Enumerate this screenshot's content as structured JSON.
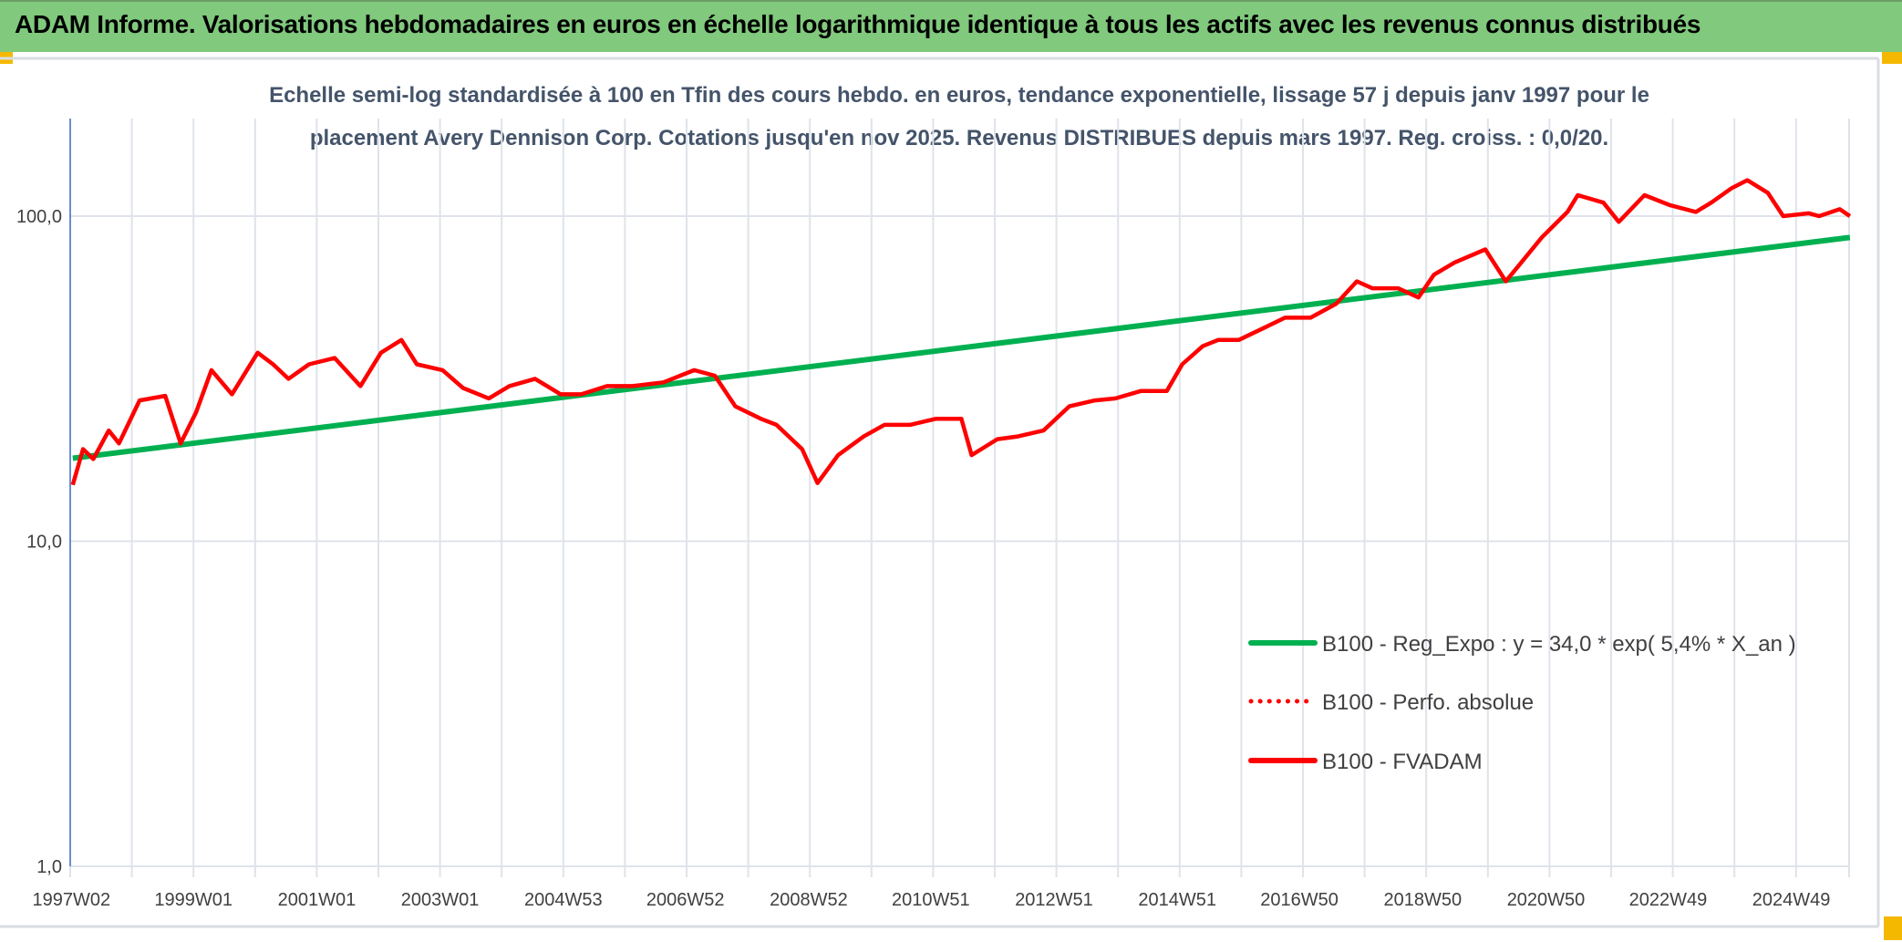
{
  "header": {
    "title": "ADAM Informe. Valorisations hebdomadaires en euros en échelle logarithmique identique à tous les actifs avec les revenus connus distribués"
  },
  "colors": {
    "header_bg": "#80c97d",
    "trend": "#00b050",
    "fvadam": "#ff0000",
    "perfo": "#ff0000",
    "grid": "#dfe3ea",
    "accent_corner": "#f5b800"
  },
  "chart_data": {
    "type": "line",
    "title_lines": [
      "Echelle semi-log standardisée à 100 en Tfin des cours hebdo. en euros, tendance exponentielle, lissage 57 j depuis janv 1997 pour le",
      "placement Avery Dennison Corp. Cotations jusqu'en nov 2025. Revenus DISTRIBUES depuis mars 1997. Reg. croiss. : 0,0/20."
    ],
    "y_scale": "log",
    "ylim": [
      1,
      200
    ],
    "y_ticks": [
      {
        "value": 1,
        "label": "1,0"
      },
      {
        "value": 10,
        "label": "10,0"
      },
      {
        "value": 100,
        "label": "100,0"
      }
    ],
    "x_tick_labels": [
      "1997W02",
      "1999W01",
      "2001W01",
      "2003W01",
      "2004W53",
      "2006W52",
      "2008W52",
      "2010W51",
      "2012W51",
      "2014W51",
      "2016W50",
      "2018W50",
      "2020W50",
      "2022W49",
      "2024W49"
    ],
    "x_range": [
      "1997-01",
      "2025-11"
    ],
    "grid": "vertical yearly + horizontal decades",
    "legend_position": "right-middle",
    "series": [
      {
        "name": "B100 - Reg_Expo : y = 34,0 * exp( 5,4% *  X_an )",
        "style": "solid",
        "color": "#00b050",
        "points": [
          [
            "1997-01",
            18.0
          ],
          [
            "2025-11",
            86.0
          ]
        ]
      },
      {
        "name": "B100 - Perfo. absolue",
        "style": "dotted",
        "color": "#ff0000",
        "points": []
      },
      {
        "name": "B100 - FVADAM",
        "style": "solid",
        "color": "#ff0000",
        "points": [
          [
            "1997-01",
            14.9
          ],
          [
            "1997-03",
            19.2
          ],
          [
            "1997-05",
            17.9
          ],
          [
            "1997-08",
            21.9
          ],
          [
            "1997-10",
            20.0
          ],
          [
            "1998-02",
            27.1
          ],
          [
            "1998-07",
            28.0
          ],
          [
            "1998-10",
            20.0
          ],
          [
            "1999-01",
            24.9
          ],
          [
            "1999-04",
            33.6
          ],
          [
            "1999-08",
            28.3
          ],
          [
            "2000-01",
            38.0
          ],
          [
            "2000-04",
            35.0
          ],
          [
            "2000-07",
            31.6
          ],
          [
            "2000-11",
            35.0
          ],
          [
            "2001-04",
            36.6
          ],
          [
            "2001-09",
            30.0
          ],
          [
            "2002-01",
            38.0
          ],
          [
            "2002-05",
            41.6
          ],
          [
            "2002-08",
            35.0
          ],
          [
            "2003-01",
            33.6
          ],
          [
            "2003-05",
            29.6
          ],
          [
            "2003-10",
            27.5
          ],
          [
            "2004-02",
            30.0
          ],
          [
            "2004-07",
            31.6
          ],
          [
            "2004-12",
            28.3
          ],
          [
            "2005-04",
            28.3
          ],
          [
            "2005-09",
            30.0
          ],
          [
            "2006-02",
            30.0
          ],
          [
            "2006-08",
            30.8
          ],
          [
            "2007-02",
            33.6
          ],
          [
            "2007-06",
            32.3
          ],
          [
            "2007-10",
            26.0
          ],
          [
            "2008-03",
            23.8
          ],
          [
            "2008-06",
            22.8
          ],
          [
            "2008-11",
            19.2
          ],
          [
            "2009-02",
            15.1
          ],
          [
            "2009-06",
            18.4
          ],
          [
            "2009-11",
            21.0
          ],
          [
            "2010-03",
            22.8
          ],
          [
            "2010-08",
            22.8
          ],
          [
            "2011-01",
            23.8
          ],
          [
            "2011-06",
            23.8
          ],
          [
            "2011-08",
            18.4
          ],
          [
            "2012-01",
            20.6
          ],
          [
            "2012-05",
            21.0
          ],
          [
            "2012-10",
            21.9
          ],
          [
            "2013-03",
            26.0
          ],
          [
            "2013-08",
            27.1
          ],
          [
            "2013-12",
            27.5
          ],
          [
            "2014-05",
            29.0
          ],
          [
            "2014-10",
            29.0
          ],
          [
            "2015-01",
            35.0
          ],
          [
            "2015-05",
            39.8
          ],
          [
            "2015-08",
            41.6
          ],
          [
            "2015-12",
            41.6
          ],
          [
            "2016-05",
            45.4
          ],
          [
            "2016-09",
            48.7
          ],
          [
            "2017-02",
            48.7
          ],
          [
            "2017-07",
            53.8
          ],
          [
            "2017-11",
            63.0
          ],
          [
            "2018-02",
            60.0
          ],
          [
            "2018-07",
            60.0
          ],
          [
            "2018-11",
            56.2
          ],
          [
            "2019-02",
            66.0
          ],
          [
            "2019-06",
            72.0
          ],
          [
            "2019-12",
            79.0
          ],
          [
            "2020-04",
            63.0
          ],
          [
            "2020-07",
            72.0
          ],
          [
            "2020-11",
            86.0
          ],
          [
            "2021-04",
            103.0
          ],
          [
            "2021-06",
            116.0
          ],
          [
            "2021-11",
            110.0
          ],
          [
            "2022-02",
            96.0
          ],
          [
            "2022-07",
            116.0
          ],
          [
            "2022-12",
            108.0
          ],
          [
            "2023-05",
            103.0
          ],
          [
            "2023-08",
            110.0
          ],
          [
            "2023-12",
            122.0
          ],
          [
            "2024-03",
            129.0
          ],
          [
            "2024-07",
            118.0
          ],
          [
            "2024-10",
            100.0
          ],
          [
            "2025-03",
            102.0
          ],
          [
            "2025-05",
            100.0
          ],
          [
            "2025-09",
            105.0
          ],
          [
            "2025-11",
            100.0
          ]
        ]
      }
    ]
  }
}
